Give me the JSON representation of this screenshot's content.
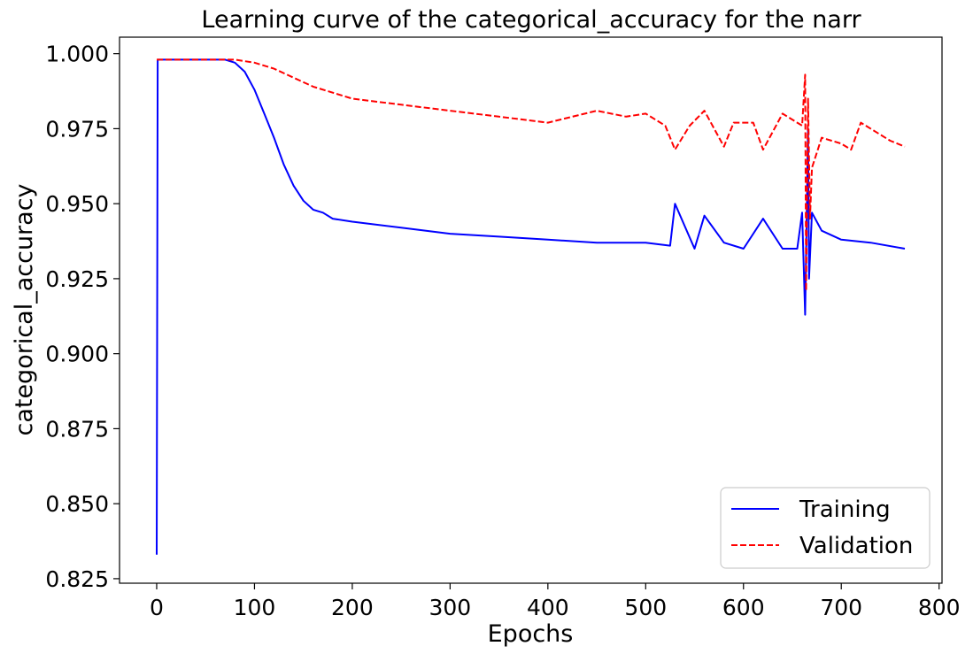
{
  "chart_data": {
    "type": "line",
    "title": "Learning curve of the categorical_accuracy for the narr",
    "xlabel": "Epochs",
    "ylabel": "categorical_accuracy",
    "xlim": [
      -38,
      803
    ],
    "ylim": [
      0.8235,
      1.0055
    ],
    "xticks": [
      0,
      100,
      200,
      300,
      400,
      500,
      600,
      700,
      800
    ],
    "yticks": [
      0.825,
      0.85,
      0.875,
      0.9,
      0.925,
      0.95,
      0.975,
      1.0
    ],
    "xtick_labels": [
      "0",
      "100",
      "200",
      "300",
      "400",
      "500",
      "600",
      "700",
      "800"
    ],
    "ytick_labels": [
      "0.825",
      "0.850",
      "0.875",
      "0.900",
      "0.925",
      "0.950",
      "0.975",
      "1.000"
    ],
    "grid": false,
    "legend_position": "bottom-right",
    "series": [
      {
        "name": "Training",
        "color": "#0000ff",
        "style": "solid",
        "x": [
          0,
          1,
          20,
          40,
          60,
          70,
          80,
          90,
          100,
          110,
          120,
          130,
          140,
          150,
          160,
          170,
          180,
          200,
          250,
          300,
          350,
          400,
          450,
          500,
          525,
          530,
          550,
          560,
          580,
          600,
          620,
          640,
          655,
          660,
          663,
          666,
          667,
          670,
          680,
          700,
          730,
          765
        ],
        "y": [
          0.833,
          0.998,
          0.998,
          0.998,
          0.998,
          0.998,
          0.997,
          0.994,
          0.988,
          0.98,
          0.972,
          0.963,
          0.956,
          0.951,
          0.948,
          0.947,
          0.945,
          0.944,
          0.942,
          0.94,
          0.939,
          0.938,
          0.937,
          0.937,
          0.936,
          0.95,
          0.935,
          0.946,
          0.937,
          0.935,
          0.945,
          0.935,
          0.935,
          0.947,
          0.913,
          0.975,
          0.925,
          0.947,
          0.941,
          0.938,
          0.937,
          0.935
        ]
      },
      {
        "name": "Validation",
        "color": "#ff0000",
        "style": "dashed",
        "x": [
          0,
          1,
          40,
          80,
          100,
          120,
          140,
          160,
          180,
          200,
          250,
          300,
          350,
          400,
          450,
          480,
          500,
          520,
          530,
          545,
          560,
          580,
          590,
          610,
          620,
          640,
          660,
          663,
          664,
          666,
          668,
          670,
          680,
          700,
          710,
          720,
          735,
          750,
          765
        ],
        "y": [
          0.998,
          0.998,
          0.998,
          0.998,
          0.997,
          0.995,
          0.992,
          0.989,
          0.987,
          0.985,
          0.983,
          0.981,
          0.979,
          0.977,
          0.981,
          0.979,
          0.98,
          0.976,
          0.968,
          0.976,
          0.981,
          0.969,
          0.977,
          0.977,
          0.968,
          0.98,
          0.976,
          0.993,
          0.921,
          0.985,
          0.945,
          0.962,
          0.972,
          0.97,
          0.968,
          0.977,
          0.974,
          0.971,
          0.969
        ]
      }
    ]
  }
}
